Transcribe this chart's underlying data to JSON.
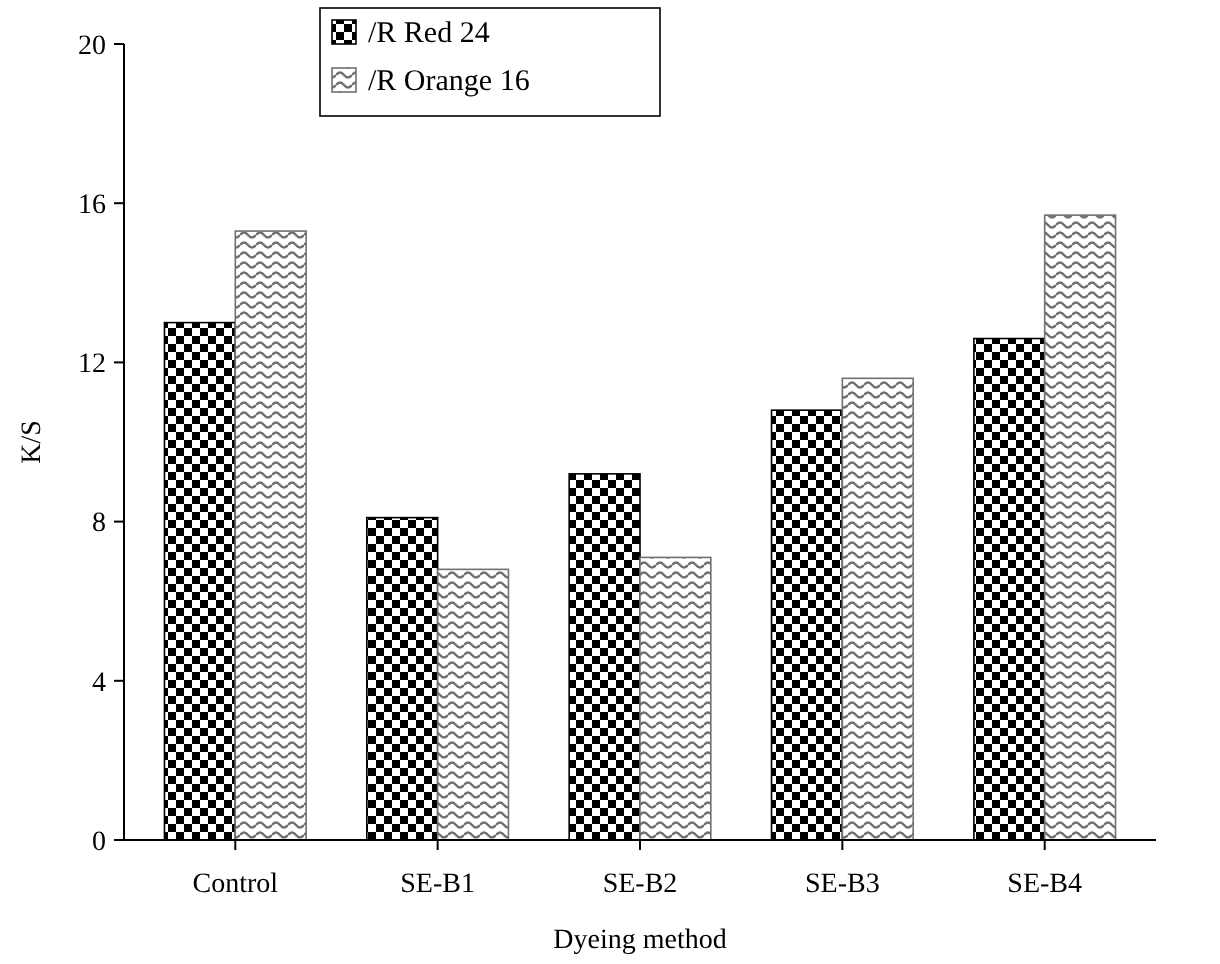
{
  "chart_data": {
    "type": "bar",
    "xlabel": "Dyeing method",
    "ylabel": "K/S",
    "categories": [
      "Control",
      "SE-B1",
      "SE-B2",
      "SE-B3",
      "SE-B4"
    ],
    "series": [
      {
        "name": "/R Red 24",
        "color": "#000000",
        "values": [
          13.0,
          8.1,
          9.2,
          10.8,
          12.6
        ]
      },
      {
        "name": "/R Orange 16",
        "color": "#707070",
        "values": [
          15.3,
          6.8,
          7.1,
          11.6,
          15.7
        ]
      }
    ],
    "ylim": [
      0,
      20
    ],
    "yticks": [
      0,
      4,
      8,
      12,
      16,
      20
    ],
    "grid": false,
    "legend": "top"
  }
}
